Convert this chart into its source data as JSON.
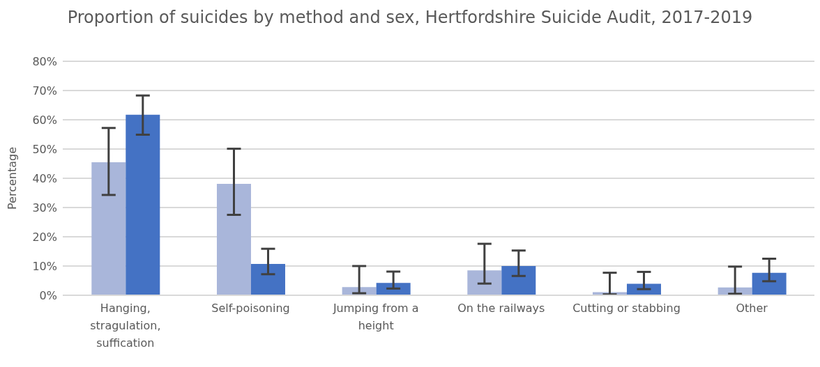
{
  "chart_data": {
    "type": "bar",
    "title": "Proportion of suicides by method and sex, Hertfordshire Suicide Audit, 2017-2019",
    "ylabel": "Percentage",
    "categories": [
      "Hanging, stragulation, suffication",
      "Self-poisoning",
      "Jumping from a height",
      "On the railways",
      "Cutting or stabbing",
      "Other"
    ],
    "series": [
      {
        "color": "#a9b6da",
        "values": [
          45.5,
          38.1,
          2.8,
          8.5,
          1.1,
          2.7
        ],
        "errors": [
          [
            34.3,
            57.2
          ],
          [
            27.5,
            50.1
          ],
          [
            0.7,
            10.0
          ],
          [
            4.0,
            17.6
          ],
          [
            0.3,
            7.7
          ],
          [
            0.5,
            9.8
          ]
        ]
      },
      {
        "color": "#4472c4",
        "values": [
          61.7,
          10.7,
          4.2,
          10.0,
          3.9,
          7.7
        ],
        "errors": [
          [
            54.9,
            68.3
          ],
          [
            7.2,
            15.9
          ],
          [
            2.3,
            8.1
          ],
          [
            6.6,
            15.3
          ],
          [
            2.1,
            8.0
          ],
          [
            4.8,
            12.5
          ]
        ]
      }
    ],
    "ylim": [
      0,
      80
    ],
    "yticks": [
      {
        "value": 0,
        "label": "0%"
      },
      {
        "value": 10,
        "label": "10%"
      },
      {
        "value": 20,
        "label": "20%"
      },
      {
        "value": 30,
        "label": "30%"
      },
      {
        "value": 40,
        "label": "40%"
      },
      {
        "value": 50,
        "label": "50%"
      },
      {
        "value": 60,
        "label": "60%"
      },
      {
        "value": 70,
        "label": "70%"
      },
      {
        "value": 80,
        "label": "80%"
      }
    ],
    "grid": "y",
    "legend": false
  }
}
